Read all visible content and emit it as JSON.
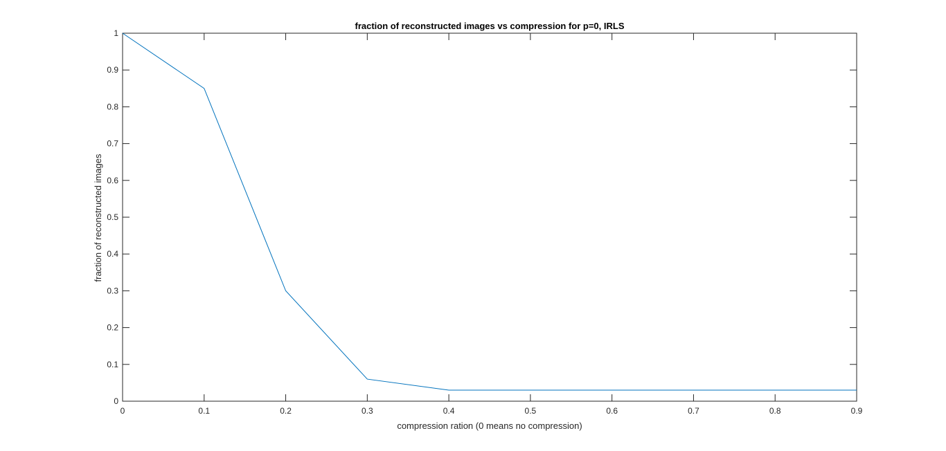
{
  "chart_data": {
    "type": "line",
    "title": "fraction of reconstructed images vs compression for p=0, IRLS",
    "xlabel": "compression ration (0 means no compression)",
    "ylabel": "fraction of reconstructed images",
    "xlim": [
      0,
      0.9
    ],
    "ylim": [
      0,
      1
    ],
    "xticks": [
      0,
      0.1,
      0.2,
      0.3,
      0.4,
      0.5,
      0.6,
      0.7,
      0.8,
      0.9
    ],
    "xtick_labels": [
      "0",
      "0.1",
      "0.2",
      "0.3",
      "0.4",
      "0.5",
      "0.6",
      "0.7",
      "0.8",
      "0.9"
    ],
    "yticks": [
      0,
      0.1,
      0.2,
      0.3,
      0.4,
      0.5,
      0.6,
      0.7,
      0.8,
      0.9,
      1
    ],
    "ytick_labels": [
      "0",
      "0.1",
      "0.2",
      "0.3",
      "0.4",
      "0.5",
      "0.6",
      "0.7",
      "0.8",
      "0.9",
      "1"
    ],
    "grid": false,
    "series": [
      {
        "x": [
          0,
          0.1,
          0.2,
          0.3,
          0.4,
          0.5,
          0.6,
          0.7,
          0.8,
          0.9
        ],
        "y": [
          1.0,
          0.85,
          0.3,
          0.06,
          0.03,
          0.03,
          0.03,
          0.03,
          0.03,
          0.03
        ],
        "color": "#0072BD"
      }
    ]
  }
}
